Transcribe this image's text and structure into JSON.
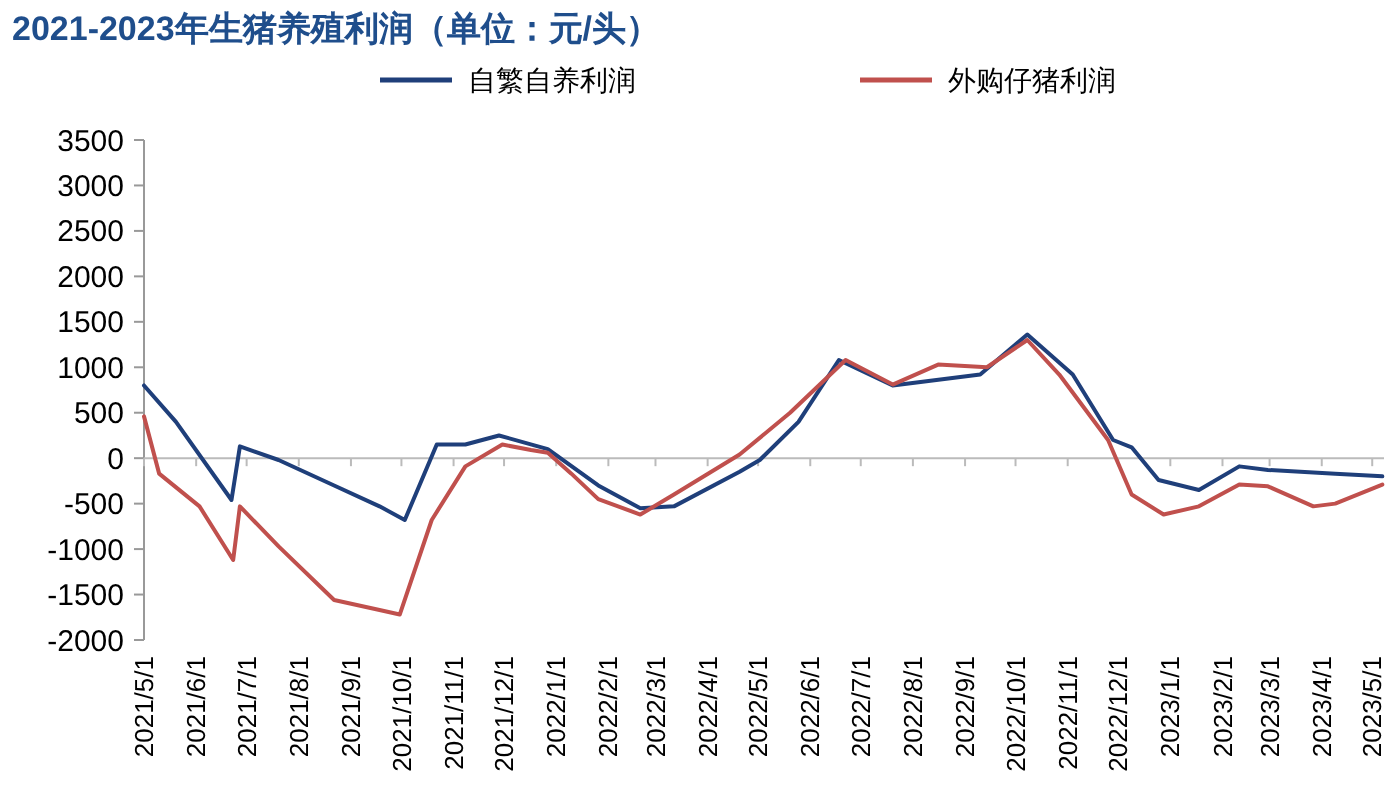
{
  "chart_data": {
    "type": "line",
    "title": "2021-2023年生猪养殖利润（单位：元/头）",
    "xlim": [
      "2021-05-01",
      "2023-05-08"
    ],
    "xticks": [
      {
        "value": "2021-05-01",
        "label": "2021/5/1"
      },
      {
        "value": "2021-06-01",
        "label": "2021/6/1"
      },
      {
        "value": "2021-07-01",
        "label": "2021/7/1"
      },
      {
        "value": "2021-08-01",
        "label": "2021/8/1"
      },
      {
        "value": "2021-09-01",
        "label": "2021/9/1"
      },
      {
        "value": "2021-10-01",
        "label": "2021/10/1"
      },
      {
        "value": "2021-11-01",
        "label": "2021/11/1"
      },
      {
        "value": "2021-12-01",
        "label": "2021/12/1"
      },
      {
        "value": "2022-01-01",
        "label": "2022/1/1"
      },
      {
        "value": "2022-02-01",
        "label": "2022/2/1"
      },
      {
        "value": "2022-03-01",
        "label": "2022/3/1"
      },
      {
        "value": "2022-04-01",
        "label": "2022/4/1"
      },
      {
        "value": "2022-05-01",
        "label": "2022/5/1"
      },
      {
        "value": "2022-06-01",
        "label": "2022/6/1"
      },
      {
        "value": "2022-07-01",
        "label": "2022/7/1"
      },
      {
        "value": "2022-08-01",
        "label": "2022/8/1"
      },
      {
        "value": "2022-09-01",
        "label": "2022/9/1"
      },
      {
        "value": "2022-10-01",
        "label": "2022/10/1"
      },
      {
        "value": "2022-11-01",
        "label": "2022/11/1"
      },
      {
        "value": "2022-12-01",
        "label": "2022/12/1"
      },
      {
        "value": "2023-01-01",
        "label": "2023/1/1"
      },
      {
        "value": "2023-02-01",
        "label": "2023/2/1"
      },
      {
        "value": "2023-03-01",
        "label": "2023/3/1"
      },
      {
        "value": "2023-04-01",
        "label": "2023/4/1"
      },
      {
        "value": "2023-05-01",
        "label": "2023/5/1"
      }
    ],
    "ylim": [
      -2000,
      3500
    ],
    "yticks": [
      -2000,
      -1500,
      -1000,
      -500,
      0,
      500,
      1000,
      1500,
      2000,
      2500,
      3000,
      3500
    ],
    "grid": false,
    "ref_lines": [
      {
        "axis": "y",
        "value": 0,
        "color": "#bbbbbb"
      }
    ],
    "legend": "top",
    "line_style": "solid",
    "marker": "none",
    "series": [
      {
        "name": "自繁自养利润",
        "color": "#1f3f7a",
        "x": [
          "2021-05-01",
          "2021-05-20",
          "2021-06-22",
          "2021-06-27",
          "2021-07-20",
          "2021-08-22",
          "2021-09-18",
          "2021-10-03",
          "2021-10-22",
          "2021-11-08",
          "2021-11-28",
          "2021-12-27",
          "2022-01-26",
          "2022-02-20",
          "2022-03-12",
          "2022-04-20",
          "2022-05-02",
          "2022-05-25",
          "2022-06-18",
          "2022-07-20",
          "2022-09-10",
          "2022-10-08",
          "2022-11-04",
          "2022-11-28",
          "2022-12-09",
          "2022-12-25",
          "2023-01-18",
          "2023-02-11",
          "2023-02-28",
          "2023-04-09",
          "2023-05-07"
        ],
        "values": [
          800,
          400,
          -460,
          130,
          -20,
          -300,
          -530,
          -680,
          150,
          150,
          250,
          100,
          -300,
          -550,
          -530,
          -150,
          -20,
          400,
          1080,
          800,
          920,
          1360,
          920,
          200,
          120,
          -240,
          -350,
          -90,
          -130,
          -170,
          -200
        ]
      },
      {
        "name": "外购仔猪利润",
        "color": "#c0504d",
        "x": [
          "2021-05-01",
          "2021-05-10",
          "2021-06-03",
          "2021-06-23",
          "2021-06-27",
          "2021-07-20",
          "2021-08-22",
          "2021-09-18",
          "2021-09-30",
          "2021-10-19",
          "2021-11-08",
          "2021-11-30",
          "2021-12-17",
          "2021-12-27",
          "2022-01-10",
          "2022-01-26",
          "2022-02-20",
          "2022-03-12",
          "2022-04-20",
          "2022-05-20",
          "2022-06-22",
          "2022-07-20",
          "2022-08-16",
          "2022-09-14",
          "2022-10-08",
          "2022-10-27",
          "2022-11-25",
          "2022-12-09",
          "2022-12-28",
          "2023-01-18",
          "2023-02-11",
          "2023-02-28",
          "2023-03-27",
          "2023-04-09",
          "2023-05-07"
        ],
        "values": [
          460,
          -170,
          -530,
          -1120,
          -530,
          -970,
          -1560,
          -1670,
          -1720,
          -680,
          -90,
          150,
          90,
          60,
          -170,
          -450,
          -620,
          -400,
          40,
          500,
          1080,
          810,
          1030,
          1000,
          1300,
          920,
          200,
          -400,
          -620,
          -530,
          -290,
          -310,
          -530,
          -500,
          -290
        ]
      }
    ]
  }
}
